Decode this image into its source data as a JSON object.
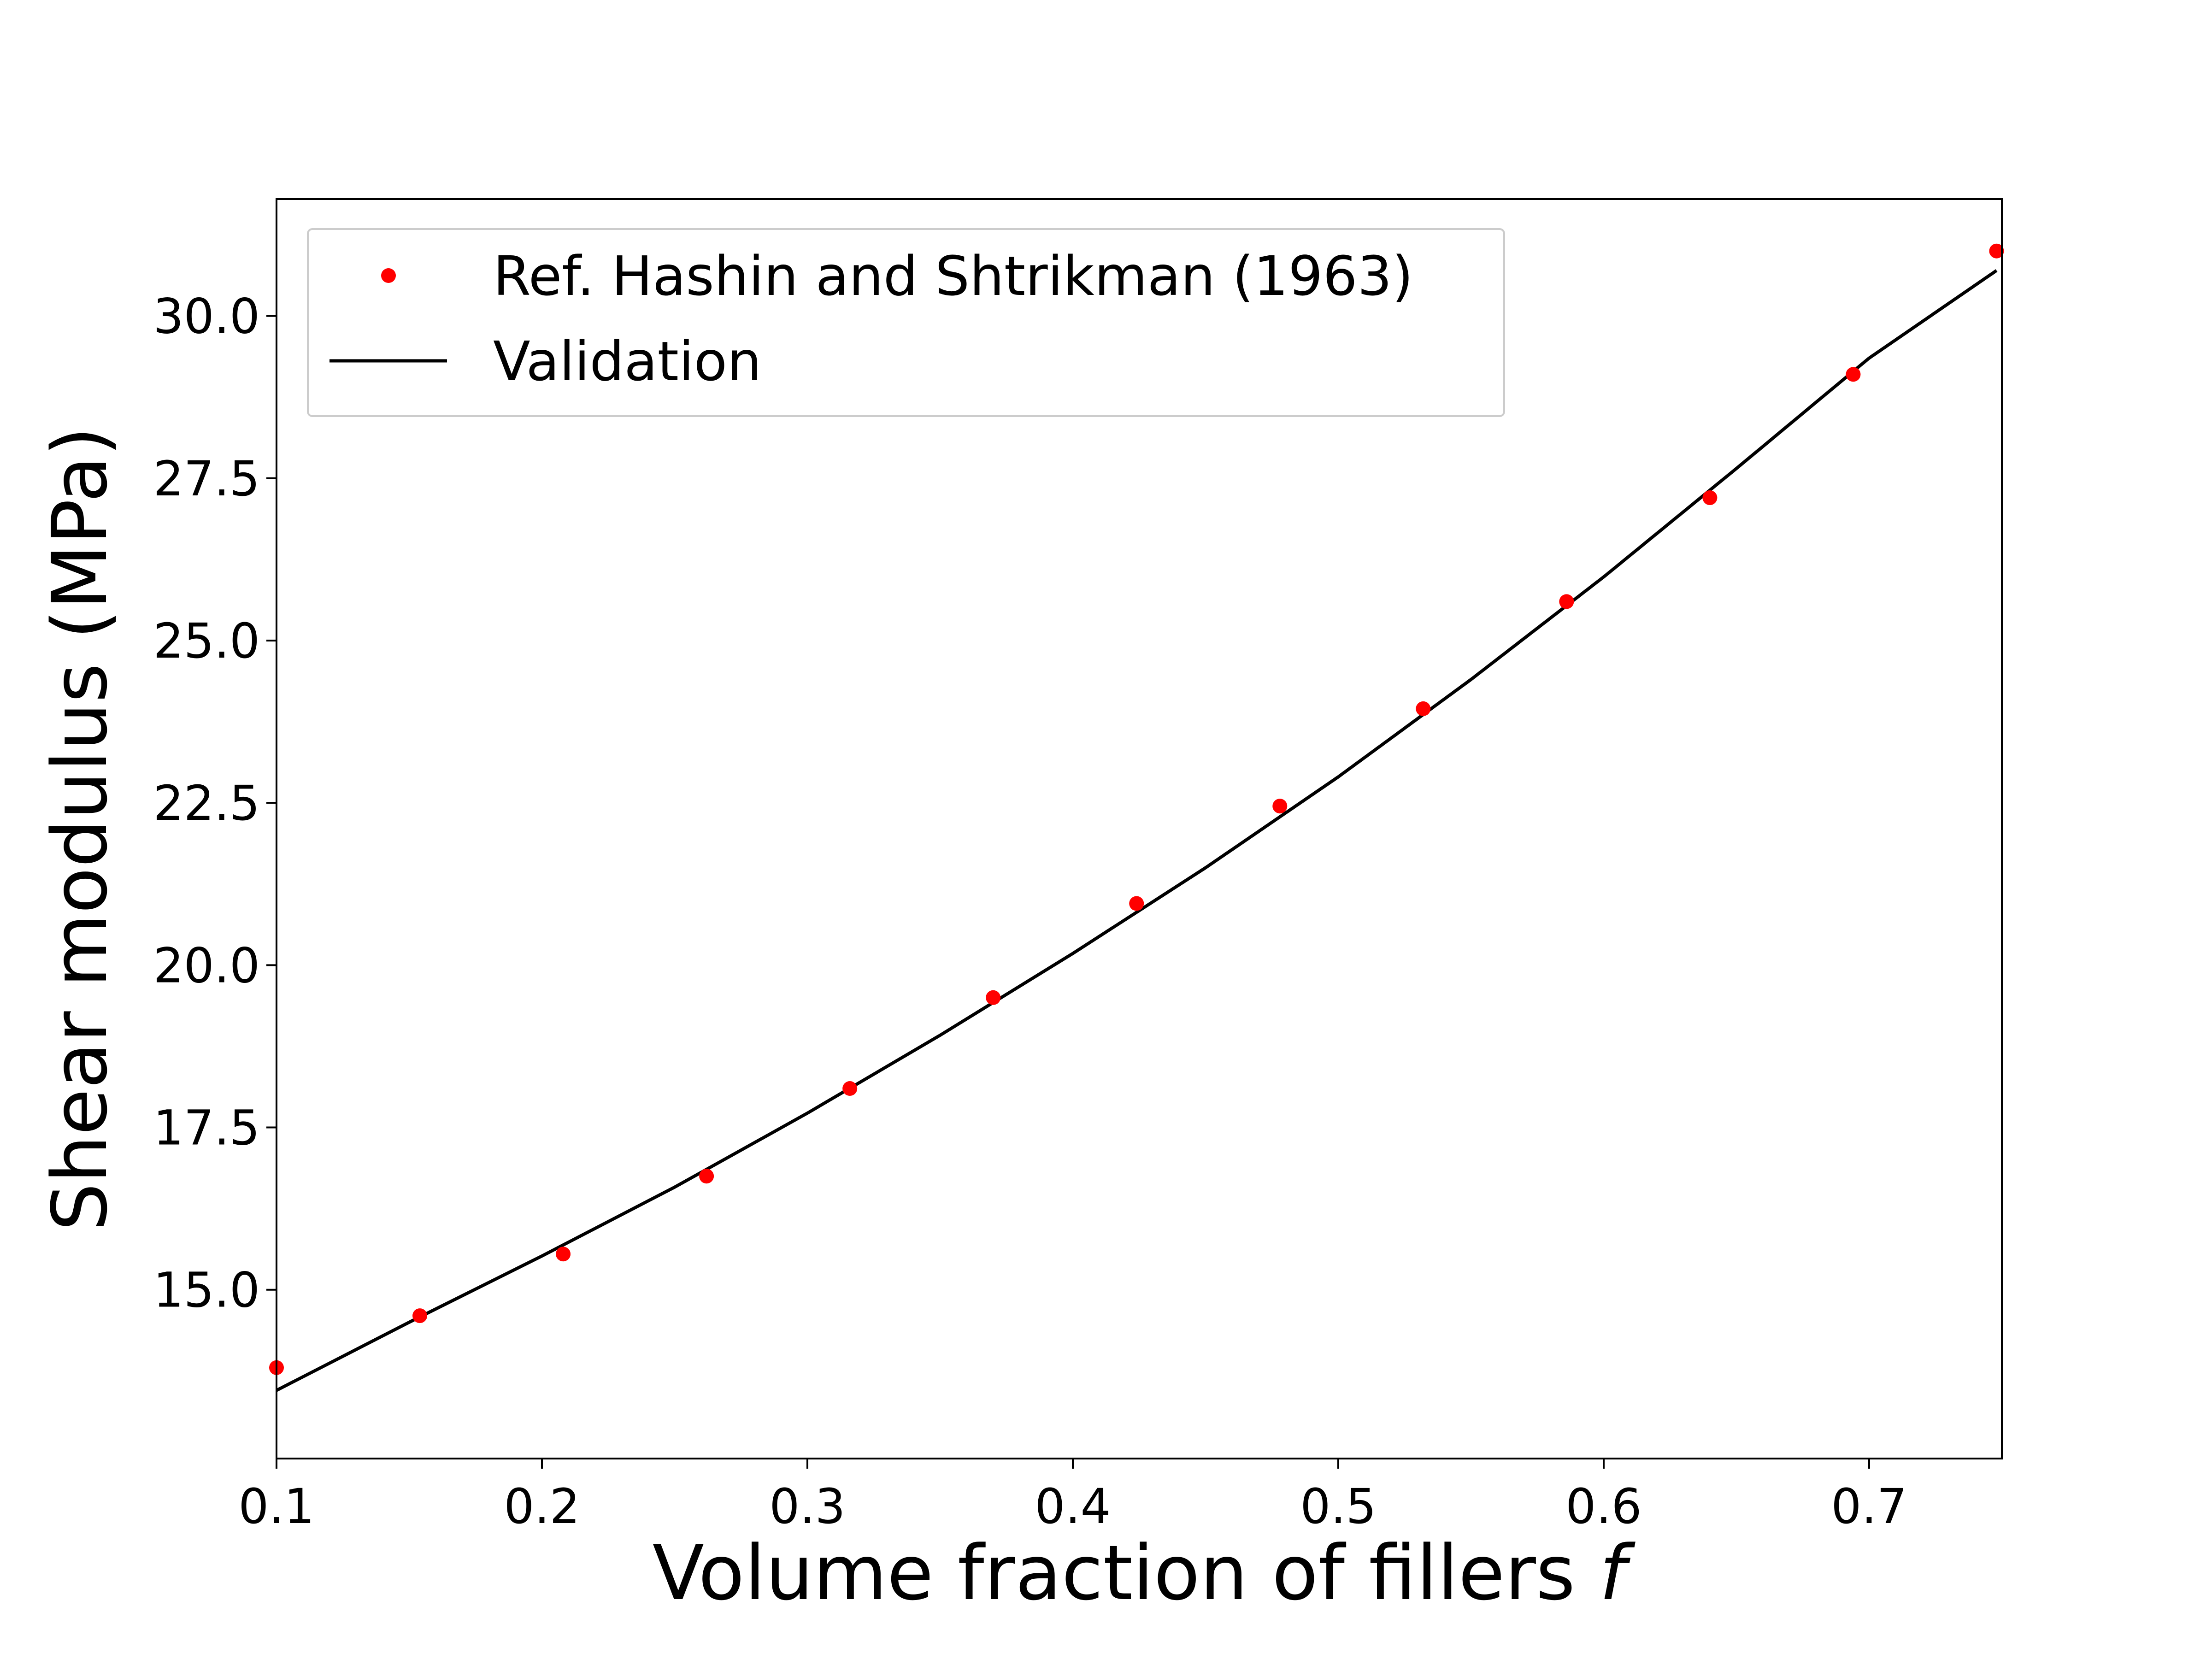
{
  "chart_data": {
    "type": "scatter",
    "xlabel": "Volume fraction of fillers",
    "xlabel_var": "f",
    "ylabel": "Shear modulus (MPa)",
    "xlim": [
      0.1,
      0.75
    ],
    "ylim": [
      12.4,
      31.8
    ],
    "xticks": [
      0.1,
      0.2,
      0.3,
      0.4,
      0.5,
      0.6,
      0.7
    ],
    "xtick_labels": [
      "0.1",
      "0.2",
      "0.3",
      "0.4",
      "0.5",
      "0.6",
      "0.7"
    ],
    "yticks": [
      15.0,
      17.5,
      20.0,
      22.5,
      25.0,
      27.5,
      30.0
    ],
    "ytick_labels": [
      "15.0",
      "17.5",
      "20.0",
      "22.5",
      "25.0",
      "27.5",
      "30.0"
    ],
    "grid": false,
    "legend_position": "top-left",
    "series": [
      {
        "name": "Ref. Hashin and Shtrikman (1963)",
        "kind": "scatter",
        "color": "#ff0000",
        "x": [
          0.1,
          0.154,
          0.208,
          0.262,
          0.316,
          0.37,
          0.424,
          0.478,
          0.532,
          0.586,
          0.64,
          0.694,
          0.748
        ],
        "y": [
          13.8,
          14.6,
          15.55,
          16.75,
          18.1,
          19.5,
          20.95,
          22.45,
          23.95,
          25.6,
          27.2,
          29.1,
          31.0
        ]
      },
      {
        "name": "Validation",
        "kind": "line",
        "color": "#000000",
        "x": [
          0.1,
          0.15,
          0.2,
          0.25,
          0.3,
          0.35,
          0.4,
          0.45,
          0.5,
          0.55,
          0.6,
          0.65,
          0.7,
          0.748
        ],
        "y": [
          13.45,
          14.5,
          15.52,
          16.58,
          17.72,
          18.92,
          20.18,
          21.5,
          22.9,
          24.4,
          25.98,
          27.65,
          29.35,
          30.7
        ]
      }
    ]
  }
}
